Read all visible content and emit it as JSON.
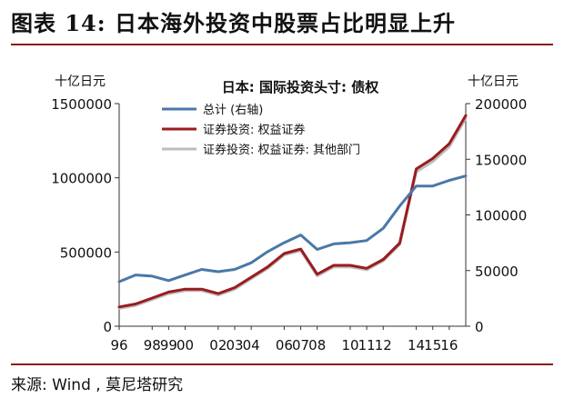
{
  "figure_title": "图表 14:  日本海外投资中股票占比明显上升",
  "source": "来源: Wind ,  莫尼塔研究",
  "chart_data": {
    "type": "line",
    "title": "日本: 国际投资头寸: 债权",
    "left_axis_unit": "十亿日元",
    "right_axis_unit": "十亿日元",
    "left_ylim": [
      0,
      1500000
    ],
    "right_ylim": [
      0,
      200000
    ],
    "left_ticks": [
      0,
      500000,
      1000000,
      1500000
    ],
    "left_tick_labels": [
      "0",
      "500000",
      "1000000",
      "1500000"
    ],
    "right_ticks": [
      0,
      50000,
      100000,
      150000,
      200000
    ],
    "right_tick_labels": [
      "0",
      "50000",
      "100000",
      "150000",
      "200000"
    ],
    "x_ticks": [
      1996,
      1998,
      1999,
      2000,
      2002,
      2003,
      2004,
      2006,
      2007,
      2008,
      2010,
      2011,
      2012,
      2014,
      2015,
      2016
    ],
    "x_tick_labels": [
      "96",
      "98",
      "99",
      "00",
      "02",
      "03",
      "04",
      "06",
      "07",
      "08",
      "10",
      "11",
      "12",
      "14",
      "15",
      "16"
    ],
    "xlim": [
      1996,
      2017
    ],
    "grid": false,
    "legend_position": "top-left",
    "series": [
      {
        "name": "总计 (右轴)",
        "axis": "right",
        "color": "#4a78a8",
        "x": [
          1996,
          1997,
          1998,
          1999,
          2000,
          2001,
          2002,
          2003,
          2004,
          2005,
          2006,
          2007,
          2008,
          2009,
          2010,
          2011,
          2012,
          2013,
          2014,
          2015,
          2016,
          2017
        ],
        "values": [
          40000,
          46000,
          45000,
          41000,
          46000,
          51000,
          49000,
          51000,
          57000,
          67000,
          75000,
          82000,
          69000,
          74000,
          75000,
          77000,
          88000,
          108000,
          126000,
          126000,
          131000,
          135000
        ]
      },
      {
        "name": "证券投资: 权益证券",
        "axis": "left",
        "color": "#9b1b1f",
        "x": [
          1996,
          1997,
          1998,
          1999,
          2000,
          2001,
          2002,
          2003,
          2004,
          2005,
          2006,
          2007,
          2008,
          2009,
          2010,
          2011,
          2012,
          2013,
          2014,
          2015,
          2016,
          2017
        ],
        "values": [
          130000,
          150000,
          190000,
          230000,
          250000,
          250000,
          220000,
          260000,
          330000,
          400000,
          490000,
          520000,
          350000,
          410000,
          410000,
          390000,
          450000,
          560000,
          1060000,
          1130000,
          1230000,
          1420000
        ]
      },
      {
        "name": "证券投资: 权益证券: 其他部门",
        "axis": "left",
        "color": "#bdbdbd",
        "x": [
          1996,
          1997,
          1998,
          1999,
          2000,
          2001,
          2002,
          2003,
          2004,
          2005,
          2006,
          2007,
          2008,
          2009,
          2010,
          2011,
          2012,
          2013,
          2014,
          2015,
          2016,
          2017
        ],
        "values": [
          120000,
          140000,
          180000,
          220000,
          240000,
          240000,
          210000,
          250000,
          320000,
          390000,
          480000,
          510000,
          340000,
          400000,
          400000,
          380000,
          440000,
          550000,
          1040000,
          1110000,
          1210000,
          1400000
        ]
      }
    ]
  }
}
